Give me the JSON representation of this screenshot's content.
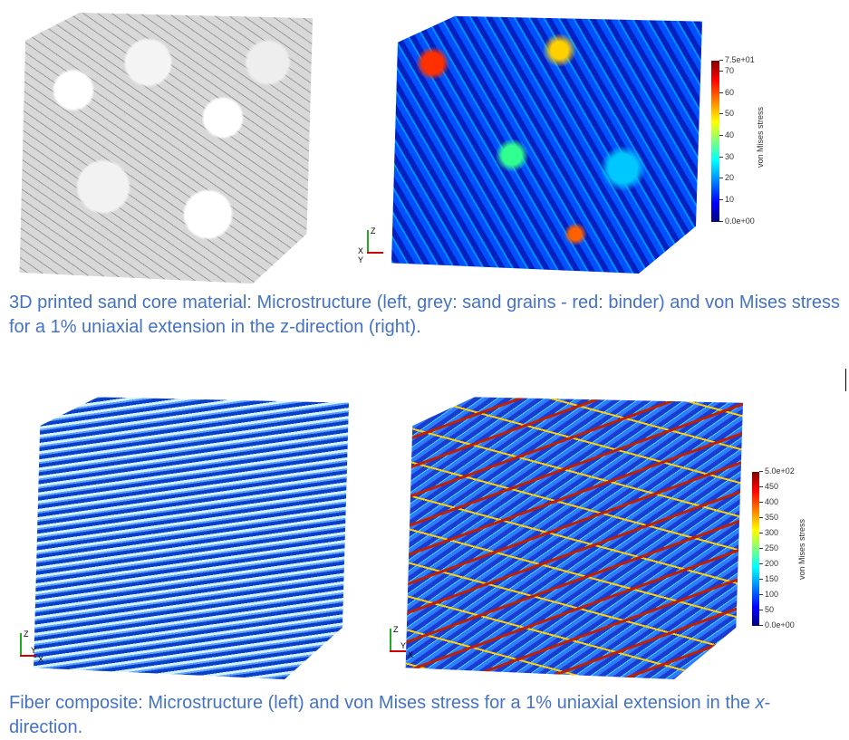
{
  "figure1": {
    "colorbar": {
      "title": "von Mises stress",
      "ticks": [
        "7.5e+01",
        "70",
        "60",
        "50",
        "40",
        "30",
        "20",
        "10",
        "0.0e+00"
      ],
      "range": [
        0,
        75
      ]
    },
    "axes": {
      "z": "Z",
      "x": "X",
      "y": "Y"
    },
    "caption": "3D printed sand core material: Microstructure (left, grey: sand grains - red: binder) and von Mises stress for a 1% uniaxial extension in the z-direction (right)."
  },
  "figure2": {
    "colorbar": {
      "title": "von Mises stress",
      "ticks": [
        "5.0e+02",
        "450",
        "400",
        "350",
        "300",
        "250",
        "200",
        "150",
        "100",
        "50",
        "0.0e+00"
      ],
      "range": [
        0,
        500
      ]
    },
    "axes_left": {
      "z": "Z",
      "x": "X",
      "y": "Y"
    },
    "axes_right": {
      "z": "Z",
      "x": "X",
      "y": "Y"
    },
    "caption_prefix": "Fiber composite: Microstructure (left) and von Mises stress for a 1% uniaxial extension in the ",
    "caption_italic": "x",
    "caption_suffix": "-direction."
  },
  "colors": {
    "caption": "#4472c4"
  }
}
